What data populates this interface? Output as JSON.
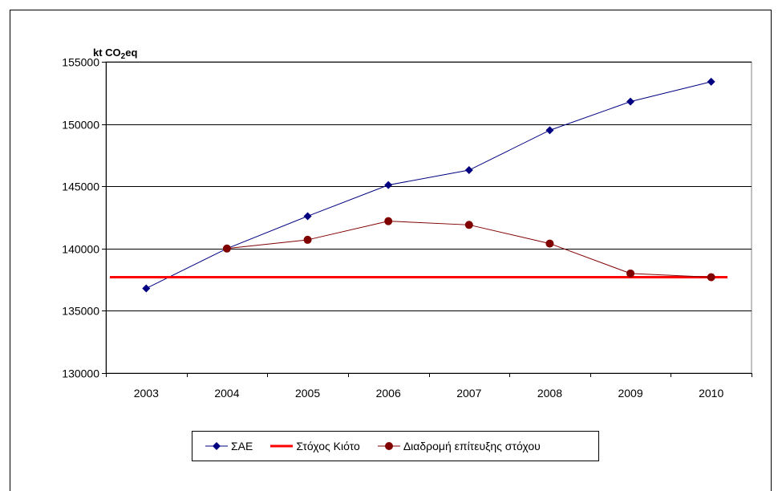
{
  "chart_data": {
    "type": "line",
    "unit_label": {
      "prefix": "kt CO",
      "sub": "2",
      "suffix": "eq"
    },
    "x": [
      "2003",
      "2004",
      "2005",
      "2006",
      "2007",
      "2008",
      "2009",
      "2010"
    ],
    "ylim": [
      130000,
      155000
    ],
    "yticks": [
      130000,
      135000,
      140000,
      145000,
      150000,
      155000
    ],
    "ytick_labels": [
      "130000",
      "135000",
      "140000",
      "145000",
      "150000",
      "155000"
    ],
    "grid": true,
    "legend_position": "bottom",
    "series": [
      {
        "name": "ΣΑΕ",
        "color": "#000080",
        "marker": "diamond",
        "values": [
          136800,
          140000,
          142600,
          145100,
          146300,
          149500,
          151800,
          153400
        ]
      },
      {
        "name": "Στόχος Κιότο",
        "color": "#ff0000",
        "marker": "none",
        "values": [
          137700,
          137700,
          137700,
          137700,
          137700,
          137700,
          137700,
          137700
        ]
      },
      {
        "name": "Διαδρομή επίτευξης στόχου",
        "color": "#800000",
        "marker": "circle",
        "values": [
          null,
          140000,
          140700,
          142200,
          141900,
          140400,
          138000,
          137700
        ]
      }
    ]
  }
}
